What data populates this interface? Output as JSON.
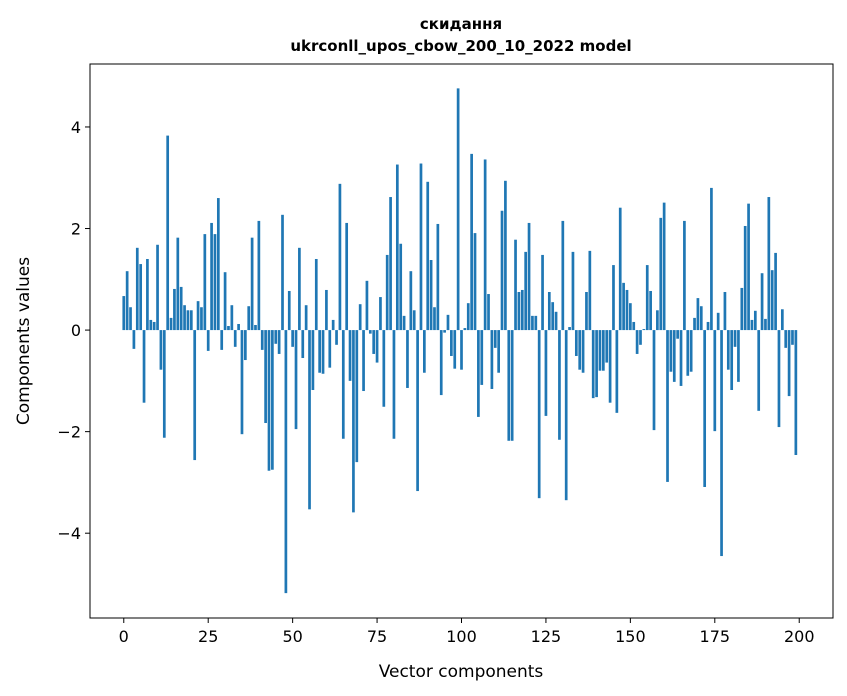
{
  "chart_data": {
    "type": "bar",
    "title_line1": "скидання",
    "title_line2": "ukrconll_upos_cbow_200_10_2022 model",
    "xlabel": "Vector components",
    "ylabel": "Components values",
    "xlim": [
      -10,
      210
    ],
    "ylim": [
      -5.67,
      5.24
    ],
    "xticks": [
      0,
      25,
      50,
      75,
      100,
      125,
      150,
      175,
      200
    ],
    "xtick_labels": [
      "0",
      "25",
      "50",
      "75",
      "100",
      "125",
      "150",
      "175",
      "200"
    ],
    "yticks": [
      -4,
      -2,
      0,
      2,
      4
    ],
    "ytick_labels": [
      "−4",
      "−2",
      "0",
      "2",
      "4"
    ],
    "grid": false,
    "bar_color": "#1f77b4",
    "values": [
      0.67,
      1.16,
      0.45,
      -0.37,
      1.62,
      1.3,
      -1.43,
      1.4,
      0.2,
      0.16,
      1.68,
      -0.78,
      -2.12,
      3.83,
      0.24,
      0.81,
      1.82,
      0.85,
      0.49,
      0.39,
      0.39,
      -2.56,
      0.57,
      0.45,
      1.89,
      -0.41,
      2.11,
      1.89,
      2.6,
      -0.39,
      1.14,
      0.08,
      0.49,
      -0.33,
      0.12,
      -2.05,
      -0.59,
      0.47,
      1.82,
      0.1,
      2.15,
      -0.39,
      -1.83,
      -2.77,
      -2.75,
      -0.27,
      -0.47,
      2.27,
      -5.18,
      0.77,
      -0.33,
      -1.95,
      1.62,
      -0.55,
      0.49,
      -3.53,
      -1.18,
      1.4,
      -0.84,
      -0.86,
      0.79,
      -0.74,
      0.2,
      -0.29,
      2.88,
      -2.14,
      2.11,
      -1.0,
      -3.59,
      -2.6,
      0.51,
      -1.2,
      0.97,
      -0.07,
      -0.47,
      -0.64,
      0.65,
      -1.51,
      1.48,
      2.62,
      -2.14,
      3.26,
      1.7,
      0.28,
      -1.14,
      1.16,
      0.39,
      -3.17,
      3.28,
      -0.84,
      2.92,
      1.38,
      0.45,
      2.09,
      -1.28,
      -0.05,
      0.3,
      -0.51,
      -0.76,
      4.76,
      -0.78,
      0.04,
      0.53,
      3.47,
      1.91,
      -1.71,
      -1.08,
      3.36,
      0.71,
      -1.16,
      -0.35,
      -0.84,
      2.35,
      2.94,
      -2.18,
      -2.18,
      1.78,
      0.75,
      0.79,
      1.54,
      2.11,
      0.28,
      0.28,
      -3.31,
      1.48,
      -1.69,
      0.75,
      0.55,
      0.36,
      -2.16,
      2.15,
      -3.35,
      0.06,
      1.54,
      -0.51,
      -0.78,
      -0.84,
      0.75,
      1.56,
      -1.34,
      -1.32,
      -0.8,
      -0.8,
      -0.64,
      -1.43,
      1.28,
      -1.63,
      2.41,
      0.93,
      0.79,
      0.53,
      0.16,
      -0.47,
      -0.29,
      0.02,
      1.28,
      0.77,
      -1.97,
      0.39,
      2.21,
      2.51,
      -2.99,
      -0.82,
      -1.02,
      -0.17,
      -1.1,
      2.15,
      -0.9,
      -0.82,
      0.24,
      0.63,
      0.47,
      -3.09,
      0.16,
      2.8,
      -1.99,
      0.34,
      -4.45,
      0.75,
      -0.78,
      -1.18,
      -0.33,
      -1.02,
      0.83,
      2.05,
      2.49,
      0.2,
      0.38,
      -1.59,
      1.12,
      0.22,
      2.62,
      1.18,
      1.52,
      -1.91,
      0.41,
      -0.35,
      -1.3,
      -0.29,
      -2.46
    ]
  }
}
